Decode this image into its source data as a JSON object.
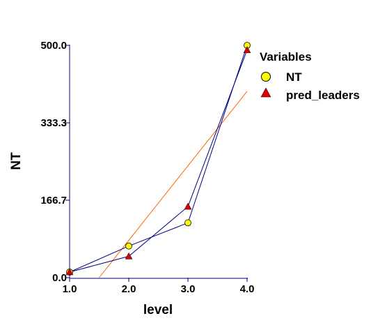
{
  "chart_data": {
    "type": "line",
    "xlabel": "level",
    "ylabel": "NT",
    "xlim": [
      1.0,
      4.0
    ],
    "ylim": [
      0.0,
      500.0
    ],
    "x_ticks": [
      "1.0",
      "2.0",
      "3.0",
      "4.0"
    ],
    "y_ticks": [
      "0.0",
      "166.7",
      "333.3",
      "500.0"
    ],
    "legend": {
      "title": "Variables",
      "position": "right"
    },
    "grid": false,
    "series": [
      {
        "name": "NT",
        "marker": "circle",
        "color": "#ffff00",
        "x": [
          1.0,
          2.0,
          3.0,
          4.0
        ],
        "y": [
          12,
          68,
          118,
          500
        ]
      },
      {
        "name": "pred_leaders",
        "marker": "triangle",
        "color": "#dd0000",
        "x": [
          1.0,
          2.0,
          3.0,
          4.0
        ],
        "y": [
          12,
          46,
          153,
          490
        ]
      }
    ],
    "connector_color": "#000080",
    "fit_line": {
      "color": "#ff6600",
      "x": [
        1.0,
        4.0
      ],
      "y": [
        -80,
        401
      ]
    }
  }
}
